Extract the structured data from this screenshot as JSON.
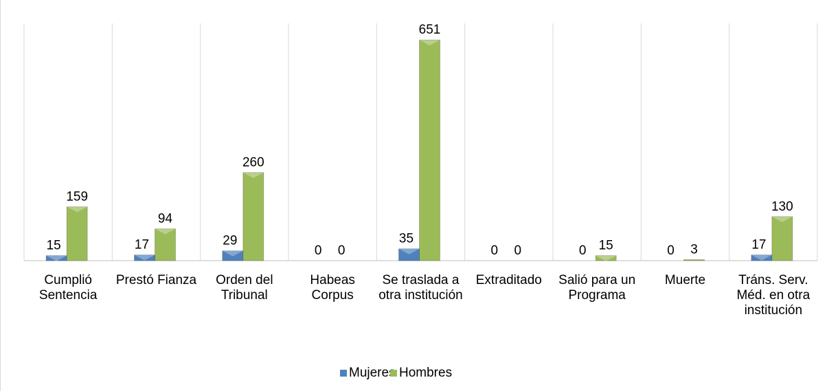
{
  "chart_data": {
    "type": "bar",
    "categories": [
      "Cumplió Sentencia",
      "Prestó Fianza",
      "Orden del Tribunal",
      "Habeas Corpus",
      "Se traslada a otra institución",
      "Extraditado",
      "Salió para un Programa",
      "Muerte",
      "Tráns. Serv. Méd. en otra institución"
    ],
    "series": [
      {
        "name": "Mujeres",
        "color": "#4f81bd",
        "values": [
          15,
          17,
          29,
          0,
          35,
          0,
          0,
          0,
          17
        ]
      },
      {
        "name": "Hombres",
        "color": "#9bbb59",
        "values": [
          159,
          94,
          260,
          0,
          651,
          0,
          15,
          3,
          130
        ]
      }
    ],
    "ylim": [
      0,
      700
    ],
    "grid": true
  }
}
